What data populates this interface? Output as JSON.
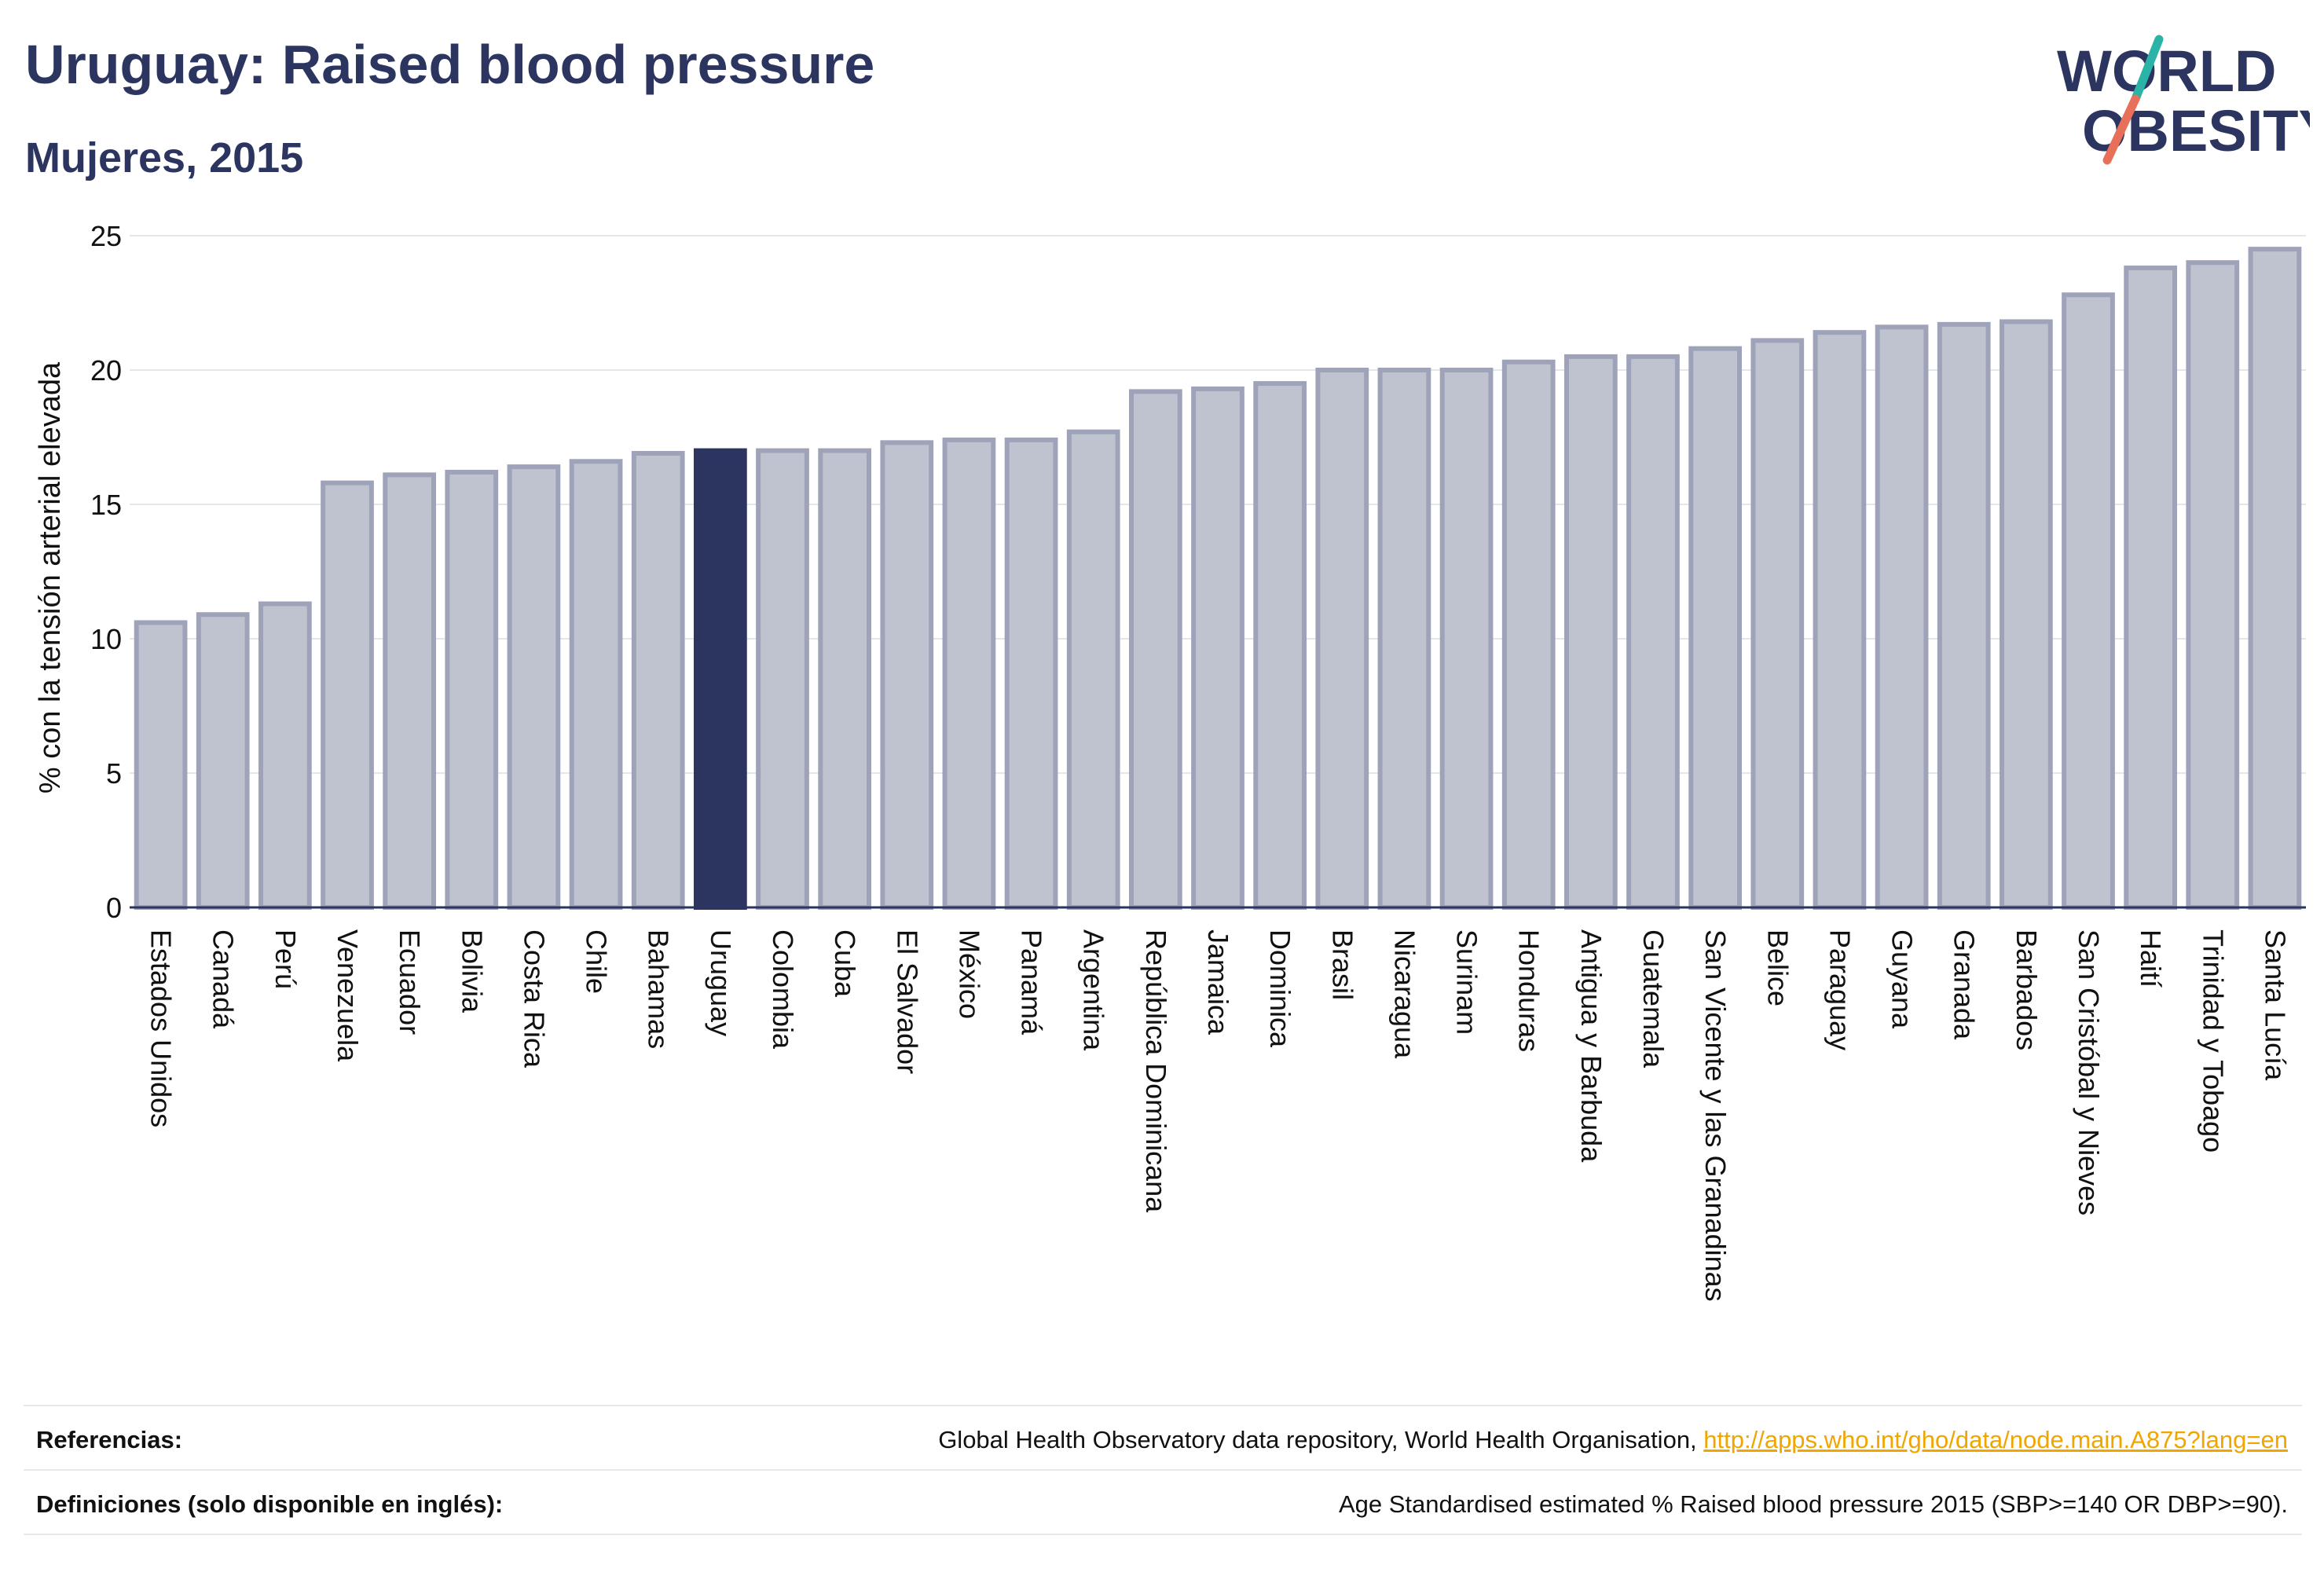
{
  "header": {
    "title": "Uruguay: Raised blood pressure",
    "subtitle": "Mujeres, 2015",
    "logo_line1": "WORLD",
    "logo_line2": "OBESITY"
  },
  "colors": {
    "bar": "#bfc2cf",
    "bar_border": "#9ea3b9",
    "highlight": "#2b3560",
    "title": "#2b3560",
    "logo_slash_top": "#2bb3a8",
    "logo_slash_bottom": "#e8705a",
    "link": "#f0a500"
  },
  "chart_data": {
    "type": "bar",
    "ylabel": "% con la tensión arterial elevada",
    "xlabel": "",
    "ylim": [
      0,
      25
    ],
    "yticks": [
      0,
      5,
      10,
      15,
      20,
      25
    ],
    "grid": true,
    "highlight": "Uruguay",
    "categories": [
      "Estados Unidos",
      "Canadá",
      "Perú",
      "Venezuela",
      "Ecuador",
      "Bolivia",
      "Costa Rica",
      "Chile",
      "Bahamas",
      "Uruguay",
      "Colombia",
      "Cuba",
      "El Salvador",
      "México",
      "Panamá",
      "Argentina",
      "República Dominicana",
      "Jamaica",
      "Dominica",
      "Brasil",
      "Nicaragua",
      "Surinam",
      "Honduras",
      "Antigua y Barbuda",
      "Guatemala",
      "San Vicente y las Granadinas",
      "Belice",
      "Paraguay",
      "Guyana",
      "Granada",
      "Barbados",
      "San Cristóbal y Nieves",
      "Haití",
      "Trinidad y Tobago",
      "Santa Lucía"
    ],
    "values": [
      10.6,
      10.9,
      11.3,
      15.8,
      16.1,
      16.2,
      16.4,
      16.6,
      16.9,
      17.0,
      17.0,
      17.0,
      17.3,
      17.4,
      17.4,
      17.7,
      19.2,
      19.3,
      19.5,
      20.0,
      20.0,
      20.0,
      20.3,
      20.5,
      20.5,
      20.8,
      21.1,
      21.4,
      21.6,
      21.7,
      21.8,
      22.8,
      23.8,
      24.0,
      24.5
    ]
  },
  "footer": {
    "ref_label": "Referencias:",
    "ref_text": "Global Health Observatory data repository, World Health Organisation, ",
    "ref_link": "http://apps.who.int/gho/data/node.main.A875?lang=en",
    "def_label": "Definiciones (solo disponible en inglés):",
    "def_text": "Age Standardised estimated % Raised blood pressure 2015 (SBP>=140 OR DBP>=90)."
  }
}
